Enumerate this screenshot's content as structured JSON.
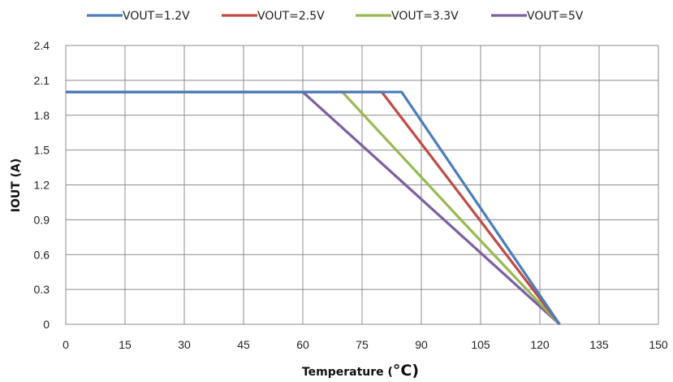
{
  "chart_data": {
    "type": "line",
    "title": "",
    "xlabel": "Temperature (",
    "xlabel_unit": "°C",
    "xlabel_close": ")",
    "ylabel": "IOUT (A)",
    "xlim": [
      0,
      150
    ],
    "ylim": [
      0,
      2.4
    ],
    "x_ticks": [
      "0",
      "15",
      "30",
      "45",
      "60",
      "75",
      "90",
      "105",
      "120",
      "135",
      "150"
    ],
    "y_ticks": [
      "0",
      "0.3",
      "0.6",
      "0.9",
      "1.2",
      "1.5",
      "1.8",
      "2.1",
      "2.4"
    ],
    "grid": true,
    "legend_position": "top",
    "series": [
      {
        "name": "VOUT=1.2V",
        "color": "#4a7ebb",
        "points": [
          [
            0,
            2.0
          ],
          [
            85,
            2.0
          ],
          [
            125,
            0
          ]
        ]
      },
      {
        "name": "VOUT=2.5V",
        "color": "#be4b48",
        "points": [
          [
            0,
            2.0
          ],
          [
            80,
            2.0
          ],
          [
            125,
            0
          ]
        ]
      },
      {
        "name": "VOUT=3.3V",
        "color": "#98b954",
        "points": [
          [
            0,
            2.0
          ],
          [
            70,
            2.0
          ],
          [
            100,
            0.9
          ],
          [
            125,
            0
          ]
        ]
      },
      {
        "name": "VOUT=5V",
        "color": "#7d5fa0",
        "points": [
          [
            0,
            2.0
          ],
          [
            60,
            2.0
          ],
          [
            125,
            0
          ]
        ]
      }
    ]
  }
}
